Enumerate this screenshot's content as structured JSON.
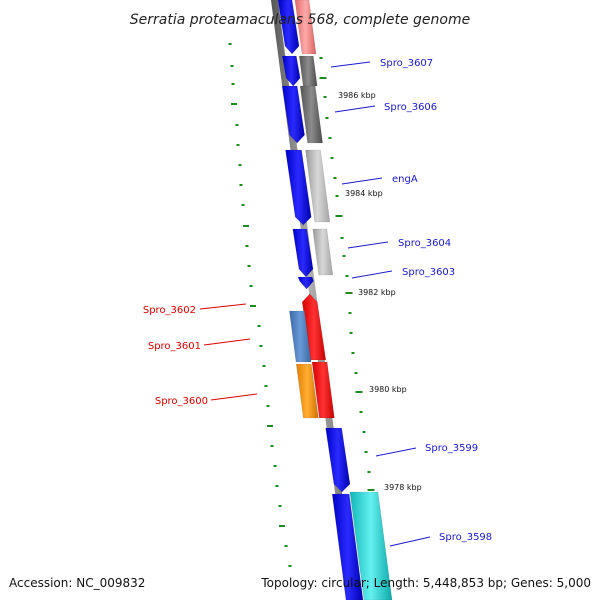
{
  "title": "Serratia proteamaculans 568, complete genome",
  "footer": {
    "accession": "Accession: NC_009832",
    "summary": "Topology: circular; Length: 5,448,853 bp; Genes: 5,000"
  },
  "colors": {
    "backbone": "#8a8a8a",
    "cds": "#0000ee",
    "label_blue": "#1a1acc",
    "label_red": "#dd0000",
    "tick": "#1f8a1f",
    "salmon": "#f08080",
    "gray_dark": "#707070",
    "gray_light": "#bdbdbd",
    "red": "#ff0000",
    "steel": "#4a7fbf",
    "orange": "#ff9900",
    "cyan": "#22dddd"
  },
  "ticks": [
    "3986 kbp",
    "3984 kbp",
    "3982 kbp",
    "3980 kbp",
    "3978 kbp"
  ],
  "gene_labels_right": [
    "Spro_3607",
    "Spro_3606",
    "engA",
    "Spro_3604",
    "Spro_3603",
    "Spro_3599",
    "Spro_3598"
  ],
  "gene_labels_left": [
    "Spro_3602",
    "Spro_3601",
    "Spro_3600"
  ]
}
